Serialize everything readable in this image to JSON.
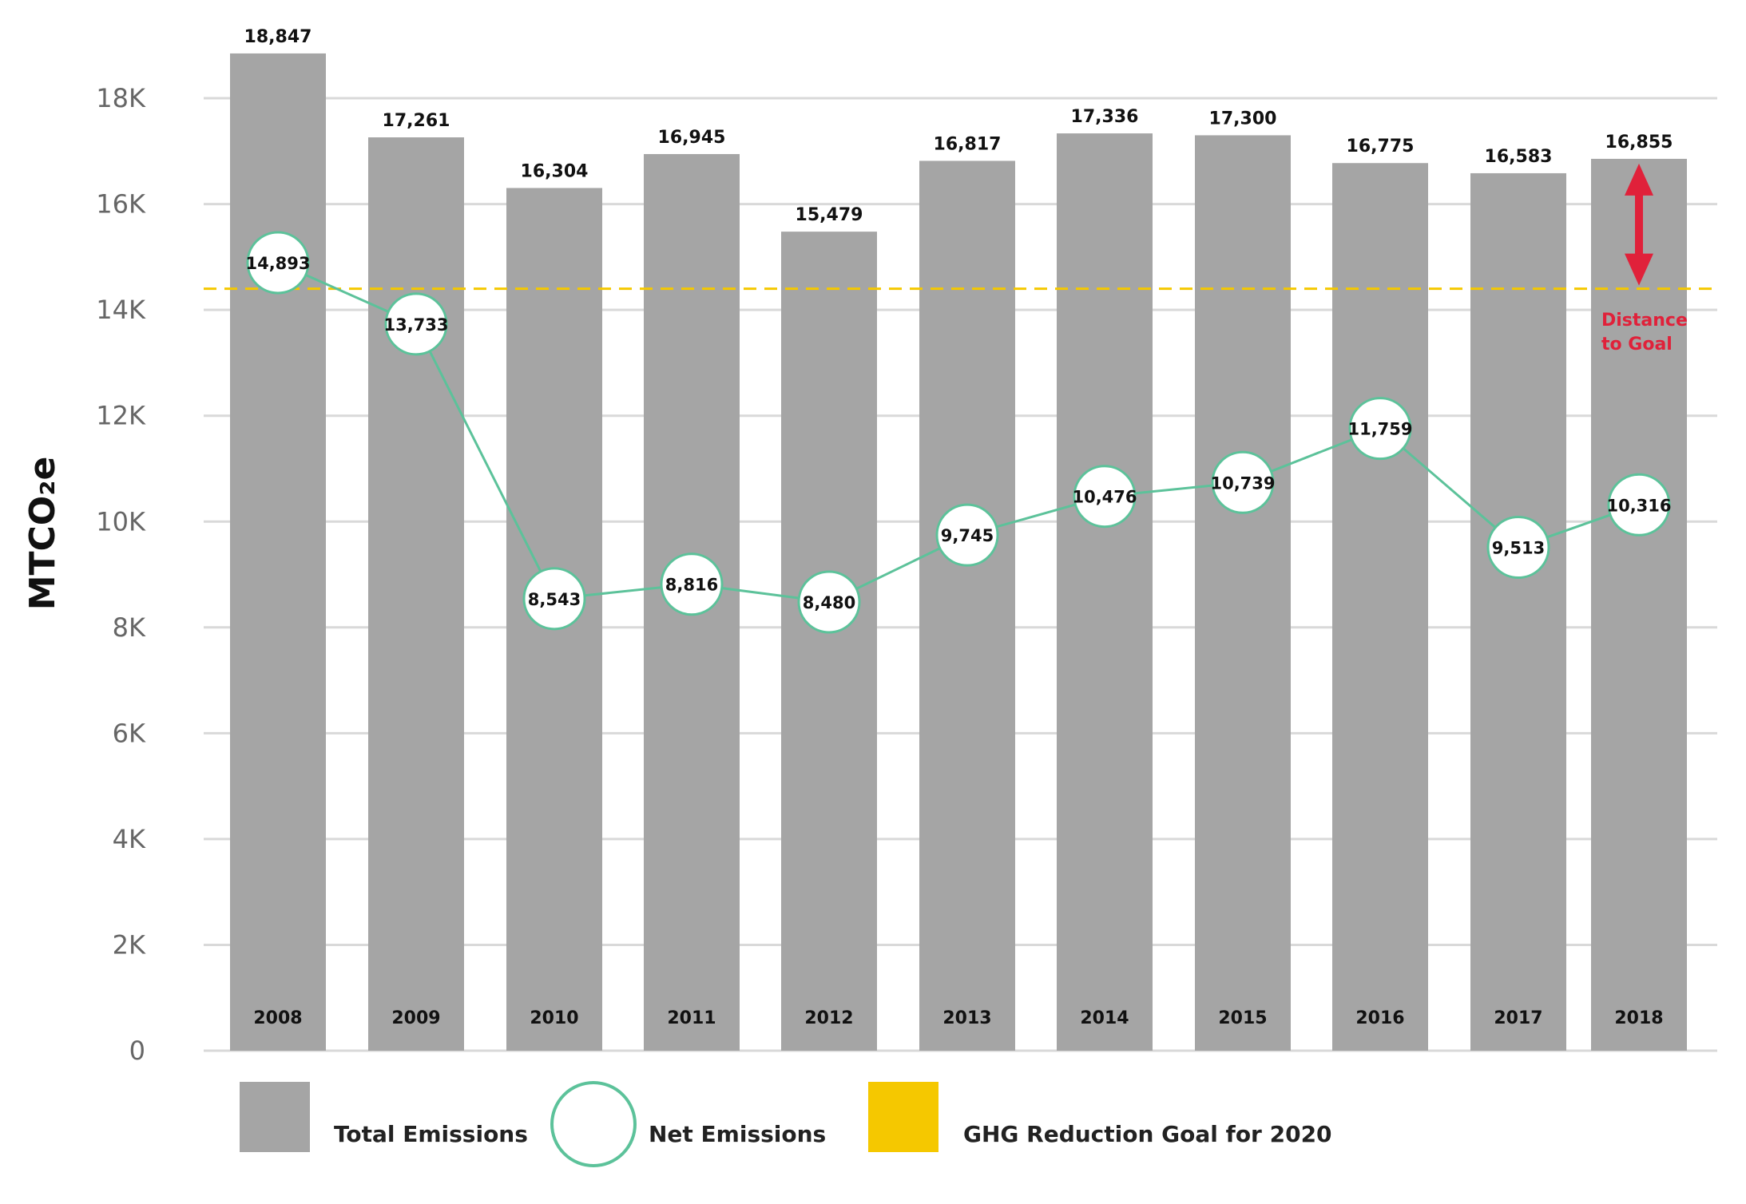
{
  "chart_data": {
    "type": "bar",
    "title": "",
    "ylabel": "MTCO₂e",
    "xlabel": "",
    "ylim": [
      0,
      19000
    ],
    "yticks": [
      0,
      2000,
      4000,
      6000,
      8000,
      10000,
      12000,
      14000,
      16000,
      18000
    ],
    "ytick_labels": [
      "0",
      "2K",
      "4K",
      "6K",
      "8K",
      "10K",
      "12K",
      "14K",
      "16K",
      "18K"
    ],
    "grid": true,
    "categories": [
      "2008",
      "2009",
      "2010",
      "2011",
      "2012",
      "2013",
      "2014",
      "2015",
      "2016",
      "2017",
      "2018"
    ],
    "series": [
      {
        "name": "Total Emissions",
        "kind": "bar",
        "color": "#a5a5a5",
        "values": [
          18847,
          17261,
          16304,
          16945,
          15479,
          16817,
          17336,
          17300,
          16775,
          16583,
          16855
        ],
        "labels": [
          "18,847",
          "17,261",
          "16,304",
          "16,945",
          "15,479",
          "16,817",
          "17,336",
          "17,300",
          "16,775",
          "16,583",
          "16,855"
        ]
      },
      {
        "name": "Net Emissions",
        "kind": "line",
        "color": "#5cc29a",
        "values": [
          14893,
          13733,
          8543,
          8816,
          8480,
          9745,
          10476,
          10739,
          11759,
          9513,
          10316
        ],
        "labels": [
          "14,893",
          "13,733",
          "8,543",
          "8,816",
          "8,480",
          "9,745",
          "10,476",
          "10,739",
          "11,759",
          "9,513",
          "10,316"
        ]
      }
    ],
    "goal": {
      "name": "GHG Reduction Goal for 2020",
      "value": 14400,
      "color": "#f5c800"
    },
    "annotation": {
      "lines": [
        "Distance",
        "to Goal"
      ],
      "color": "#e0213a",
      "category": "2018"
    },
    "legend": {
      "placement": "bottom",
      "items": [
        {
          "label": "Total Emissions",
          "swatch": "bar",
          "color": "#a5a5a5"
        },
        {
          "label": "Net Emissions",
          "swatch": "circle",
          "color": "#5cc29a"
        },
        {
          "label": "GHG Reduction Goal for 2020",
          "swatch": "square",
          "color": "#f5c800"
        }
      ]
    }
  }
}
